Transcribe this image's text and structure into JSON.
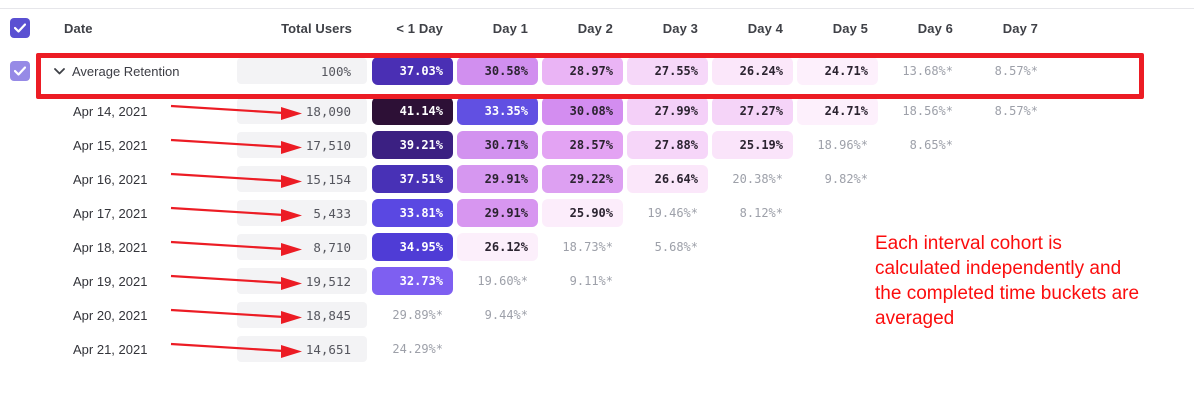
{
  "colors": {
    "accent_checkbox": "#5a50d2",
    "accent_checkbox_light": "#968ae6",
    "annotation_red": "#ec1c24",
    "annotation_text_red": "#fb0d0d",
    "neutral_cell_bg": "#f3f3f5",
    "gray_value_text": "#9da0a9",
    "dark_value_text": "#2b2330"
  },
  "header": {
    "date": "Date",
    "total_users": "Total Users",
    "day_cols": [
      "< 1 Day",
      "Day 1",
      "Day 2",
      "Day 3",
      "Day 4",
      "Day 5",
      "Day 6",
      "Day 7"
    ]
  },
  "average_row": {
    "label": "Average Retention",
    "total": "100%",
    "cells": [
      {
        "value": "37.03%",
        "bg": "#4a2fb4",
        "fg": "#ffffff"
      },
      {
        "value": "30.58%",
        "bg": "#d18fef",
        "fg": "#2b2330"
      },
      {
        "value": "28.97%",
        "bg": "#eab4f5",
        "fg": "#2b2330"
      },
      {
        "value": "27.55%",
        "bg": "#f6d8f9",
        "fg": "#2b2330"
      },
      {
        "value": "26.24%",
        "bg": "#fbe7fa",
        "fg": "#2b2330"
      },
      {
        "value": "24.71%",
        "bg": "#fdf0fc",
        "fg": "#2b2330"
      },
      {
        "value": "13.68%*",
        "bg": null,
        "fg": "#9da0a9"
      },
      {
        "value": "8.57%*",
        "bg": null,
        "fg": "#9da0a9"
      }
    ]
  },
  "rows": [
    {
      "date": "Apr 14, 2021",
      "total": "18,090",
      "cells": [
        {
          "value": "41.14%",
          "bg": "#2d1036",
          "fg": "#ffffff"
        },
        {
          "value": "33.35%",
          "bg": "#6150e2",
          "fg": "#ffffff"
        },
        {
          "value": "30.08%",
          "bg": "#d38df0",
          "fg": "#2b2330"
        },
        {
          "value": "27.99%",
          "bg": "#f4d0f8",
          "fg": "#2b2330"
        },
        {
          "value": "27.27%",
          "bg": "#f5d4f8",
          "fg": "#2b2330"
        },
        {
          "value": "24.71%",
          "bg": "#fdf0fc",
          "fg": "#2b2330"
        },
        {
          "value": "18.56%*",
          "bg": null,
          "fg": "#9da0a9"
        },
        {
          "value": "8.57%*",
          "bg": null,
          "fg": "#9da0a9"
        }
      ]
    },
    {
      "date": "Apr 15, 2021",
      "total": "17,510",
      "cells": [
        {
          "value": "39.21%",
          "bg": "#3b2082",
          "fg": "#ffffff"
        },
        {
          "value": "30.71%",
          "bg": "#d292ef",
          "fg": "#2b2330"
        },
        {
          "value": "28.57%",
          "bg": "#e3a3f3",
          "fg": "#2b2330"
        },
        {
          "value": "27.88%",
          "bg": "#f6d6f9",
          "fg": "#2b2330"
        },
        {
          "value": "25.19%",
          "bg": "#fae4fa",
          "fg": "#2b2330"
        },
        {
          "value": "18.96%*",
          "bg": null,
          "fg": "#9da0a9"
        },
        {
          "value": "8.65%*",
          "bg": null,
          "fg": "#9da0a9"
        },
        null
      ]
    },
    {
      "date": "Apr 16, 2021",
      "total": "15,154",
      "cells": [
        {
          "value": "37.51%",
          "bg": "#4831b6",
          "fg": "#ffffff"
        },
        {
          "value": "29.91%",
          "bg": "#d697f0",
          "fg": "#2b2330"
        },
        {
          "value": "29.22%",
          "bg": "#dda0f2",
          "fg": "#2b2330"
        },
        {
          "value": "26.64%",
          "bg": "#fbe7fa",
          "fg": "#2b2330"
        },
        {
          "value": "20.38%*",
          "bg": null,
          "fg": "#9da0a9"
        },
        {
          "value": "9.82%*",
          "bg": null,
          "fg": "#9da0a9"
        },
        null,
        null
      ]
    },
    {
      "date": "Apr 17, 2021",
      "total": "5,433",
      "cells": [
        {
          "value": "33.81%",
          "bg": "#5a48e2",
          "fg": "#ffffff"
        },
        {
          "value": "29.91%",
          "bg": "#d796f0",
          "fg": "#2b2330"
        },
        {
          "value": "25.90%",
          "bg": "#fcedfb",
          "fg": "#2b2330"
        },
        {
          "value": "19.46%*",
          "bg": null,
          "fg": "#9da0a9"
        },
        {
          "value": "8.12%*",
          "bg": null,
          "fg": "#9da0a9"
        },
        null,
        null,
        null
      ]
    },
    {
      "date": "Apr 18, 2021",
      "total": "8,710",
      "cells": [
        {
          "value": "34.95%",
          "bg": "#4f3cd6",
          "fg": "#ffffff"
        },
        {
          "value": "26.12%",
          "bg": "#fceffb",
          "fg": "#2b2330"
        },
        {
          "value": "18.73%*",
          "bg": null,
          "fg": "#9da0a9"
        },
        {
          "value": "5.68%*",
          "bg": null,
          "fg": "#9da0a9"
        },
        null,
        null,
        null,
        null
      ]
    },
    {
      "date": "Apr 19, 2021",
      "total": "19,512",
      "cells": [
        {
          "value": "32.73%",
          "bg": "#7e5ff1",
          "fg": "#ffffff"
        },
        {
          "value": "19.60%*",
          "bg": null,
          "fg": "#9da0a9"
        },
        {
          "value": "9.11%*",
          "bg": null,
          "fg": "#9da0a9"
        },
        null,
        null,
        null,
        null,
        null
      ]
    },
    {
      "date": "Apr 20, 2021",
      "total": "18,845",
      "cells": [
        {
          "value": "29.89%*",
          "bg": null,
          "fg": "#9da0a9"
        },
        {
          "value": "9.44%*",
          "bg": null,
          "fg": "#9da0a9"
        },
        null,
        null,
        null,
        null,
        null,
        null
      ]
    },
    {
      "date": "Apr 21, 2021",
      "total": "14,651",
      "cells": [
        {
          "value": "24.29%*",
          "bg": null,
          "fg": "#9da0a9"
        },
        null,
        null,
        null,
        null,
        null,
        null,
        null
      ]
    }
  ],
  "annotation": {
    "lines": [
      "Each interval cohort is",
      "calculated independently and",
      "the completed time buckets are",
      "averaged"
    ]
  }
}
